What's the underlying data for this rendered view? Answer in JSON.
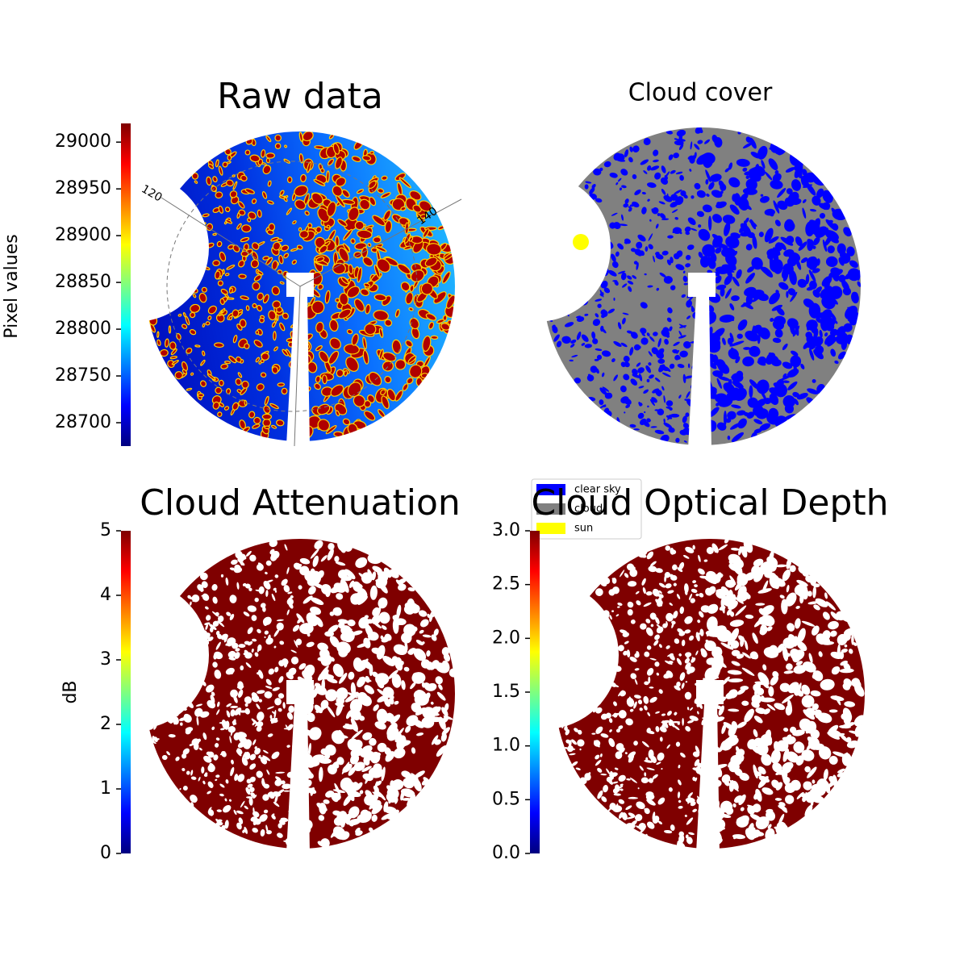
{
  "chart_data": [
    {
      "type": "image",
      "title": "Raw data",
      "colormap": "jet",
      "colorbar_label": "Pixel values",
      "clim": [
        28675,
        29020
      ],
      "cticks": [
        28700,
        28750,
        28800,
        28850,
        28900,
        28950,
        29000
      ],
      "annotations": [
        "120",
        "140"
      ]
    },
    {
      "type": "image",
      "title": "Cloud cover",
      "series": [
        {
          "name": "clear sky",
          "color": "#0000ff"
        },
        {
          "name": "cloud",
          "color": "#808080"
        },
        {
          "name": "sun",
          "color": "#ffff00"
        }
      ]
    },
    {
      "type": "image",
      "title": "Cloud Attenuation",
      "colormap": "jet",
      "colorbar_label": "dB",
      "clim": [
        0,
        5
      ],
      "cticks": [
        0,
        1,
        2,
        3,
        4,
        5
      ]
    },
    {
      "type": "image",
      "title": "Cloud Optical Depth",
      "colormap": "jet",
      "clim": [
        0,
        3
      ],
      "cticks": [
        {
          "value": 0,
          "label": "0.0"
        },
        {
          "value": 0.5,
          "label": "0.5"
        },
        {
          "value": 1,
          "label": "1.0"
        },
        {
          "value": 1.5,
          "label": "1.5"
        },
        {
          "value": 2,
          "label": "2.0"
        },
        {
          "value": 2.5,
          "label": "2.5"
        },
        {
          "value": 3,
          "label": "3.0"
        }
      ]
    }
  ]
}
